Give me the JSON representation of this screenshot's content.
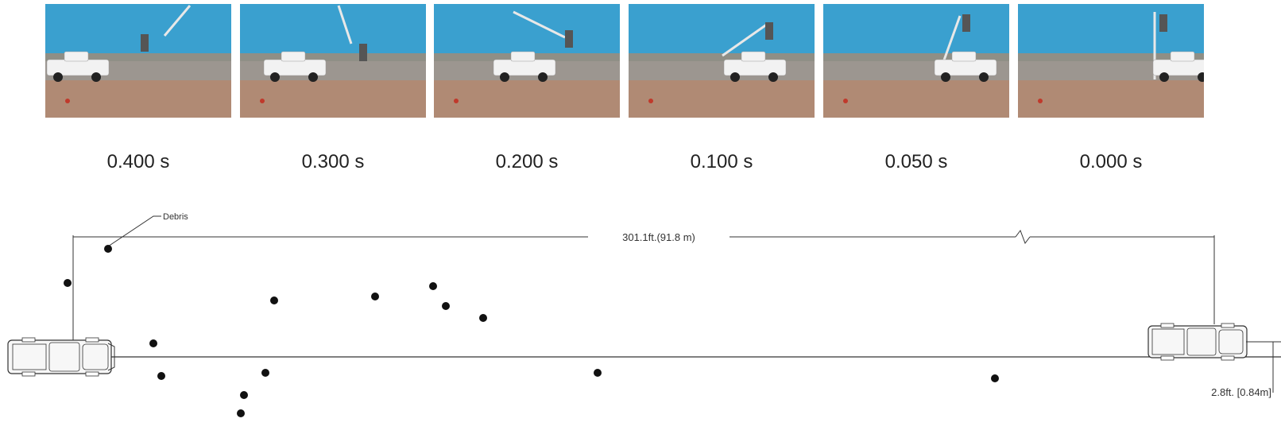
{
  "frames": [
    {
      "time": "0.400 s"
    },
    {
      "time": "0.300 s"
    },
    {
      "time": "0.200 s"
    },
    {
      "time": "0.100 s"
    },
    {
      "time": "0.050 s"
    },
    {
      "time": "0.000 s"
    }
  ],
  "diagram": {
    "debris_label": "Debris",
    "distance_label": "301.1ft.(91.8 m)",
    "offset_label": "2.8ft. [0.84m]"
  },
  "colors": {
    "sky": "#3aa0cf",
    "ground": "#b08a74",
    "truck": "#f2f2f2",
    "line": "#333333"
  }
}
